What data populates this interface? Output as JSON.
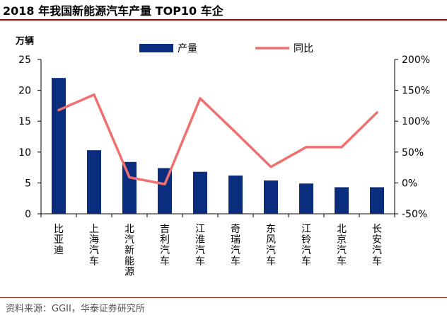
{
  "title": "2018 年我国新能源汽车产量 TOP10 车企",
  "source": "资料来源：GGII，华泰证券研究所",
  "colors": {
    "bar": "#0b2d7d",
    "line": "#f07070",
    "title_rule": "#a30000"
  },
  "chart_data": {
    "type": "bar",
    "title": "2018 年我国新能源汽车产量 TOP10 车企",
    "categories": [
      "比亚迪",
      "上海汽车",
      "北汽新能源",
      "吉利汽车",
      "江淮汽车",
      "奇瑞汽车",
      "东风汽车",
      "江铃汽车",
      "北京汽车",
      "长安汽车"
    ],
    "series": [
      {
        "name": "产量",
        "type": "bar",
        "axis": "left",
        "values": [
          22.0,
          10.3,
          8.4,
          7.4,
          6.8,
          6.2,
          5.4,
          4.9,
          4.3,
          4.3
        ]
      },
      {
        "name": "同比",
        "type": "line",
        "axis": "right",
        "values": [
          118,
          143,
          9,
          -2,
          137,
          82,
          26,
          58,
          58,
          114
        ]
      }
    ],
    "y_left": {
      "label": "万辆",
      "ylim": [
        0,
        25
      ],
      "ticks": [
        "0",
        "5",
        "10",
        "15",
        "20",
        "25"
      ]
    },
    "y_right": {
      "label": "",
      "ylim": [
        -50,
        200
      ],
      "ticks": [
        "-50%",
        "0%",
        "50%",
        "100%",
        "150%",
        "200%"
      ]
    },
    "legend_position": "top",
    "grid": false
  }
}
